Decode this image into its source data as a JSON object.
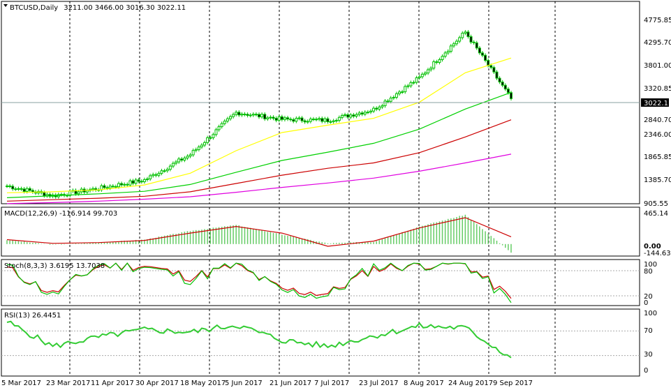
{
  "header": {
    "symbol": "BTCUSD,Daily",
    "ohlc": "3211.00 3466.00 3016.30 3022.11"
  },
  "price_panel": {
    "current_price": "3022.11",
    "y_axis_ticks": [
      "4775.85",
      "4295.70",
      "3801.00",
      "3320.85",
      "2840.70",
      "2346.00",
      "1865.85",
      "1385.70",
      "905.55"
    ]
  },
  "x_axis_labels": [
    "5 Mar 2017",
    "23 Mar 2017",
    "11 Apr 2017",
    "30 Apr 2017",
    "18 May 2017",
    "5 Jun 2017",
    "21 Jun 2017",
    "7 Jul 2017",
    "23 Jul 2017",
    "8 Aug 2017",
    "24 Aug 2017",
    "9 Sep 2017"
  ],
  "macd_panel": {
    "label": "MACD(12,26,9) -116.914 99.703",
    "y_axis_ticks": [
      "465.14",
      "0.00",
      "-144.631"
    ]
  },
  "stoch_panel": {
    "label": "Stoch(8,3,3) 3.6195 13.7038",
    "y_axis_ticks": [
      "100",
      "80",
      "20",
      "0"
    ]
  },
  "rsi_panel": {
    "label": "RSI(13) 26.4451",
    "y_axis_ticks": [
      "100",
      "70",
      "30",
      "0"
    ]
  },
  "colors": {
    "candle": "#00c000",
    "ma_yellow": "#ffff00",
    "ma_green": "#00d000",
    "ma_red": "#cc0000",
    "ma_magenta": "#e000e0",
    "macd_hist": "#66cc66",
    "macd_signal": "#cc0000",
    "stoch_main": "#00c000",
    "stoch_signal": "#cc0000",
    "rsi_line": "#33cc33",
    "grid": "#000000"
  },
  "chart_data": [
    {
      "type": "candlestick",
      "title": "BTCUSD,Daily",
      "ylim": [
        905.55,
        4950
      ],
      "x": [
        "5 Mar 2017",
        "23 Mar 2017",
        "11 Apr 2017",
        "30 Apr 2017",
        "18 May 2017",
        "5 Jun 2017",
        "21 Jun 2017",
        "7 Jul 2017",
        "23 Jul 2017",
        "8 Aug 2017",
        "24 Aug 2017",
        "9 Sep 2017"
      ],
      "close": [
        1240,
        1040,
        1190,
        1360,
        1880,
        2740,
        2600,
        2580,
        2800,
        3450,
        4380,
        3022.11
      ],
      "ma_yellow": [
        1100,
        1120,
        1160,
        1260,
        1500,
        1960,
        2330,
        2480,
        2620,
        2950,
        3550,
        3850
      ],
      "ma_green": [
        1000,
        1040,
        1080,
        1130,
        1270,
        1520,
        1760,
        1930,
        2110,
        2400,
        2810,
        3150
      ],
      "ma_red": [
        930,
        960,
        990,
        1030,
        1120,
        1290,
        1460,
        1600,
        1710,
        1920,
        2240,
        2590
      ],
      "ma_magenta": [
        880,
        900,
        930,
        970,
        1020,
        1110,
        1210,
        1300,
        1400,
        1540,
        1710,
        1890
      ]
    },
    {
      "type": "bar",
      "title": "MACD(12,26,9) -116.914 99.703",
      "ylim": [
        -144.631,
        465.14
      ],
      "x": [
        "5 Mar 2017",
        "23 Mar 2017",
        "11 Apr 2017",
        "30 Apr 2017",
        "18 May 2017",
        "5 Jun 2017",
        "21 Jun 2017",
        "7 Jul 2017",
        "23 Jul 2017",
        "8 Aug 2017",
        "24 Aug 2017",
        "9 Sep 2017"
      ],
      "histogram": [
        55,
        -10,
        20,
        60,
        180,
        260,
        130,
        10,
        30,
        240,
        400,
        -116.914
      ],
      "signal": [
        60,
        10,
        20,
        50,
        150,
        240,
        150,
        -30,
        40,
        220,
        360,
        99.703
      ]
    },
    {
      "type": "line",
      "title": "Stoch(8,3,3) 3.6195 13.7038",
      "ylim": [
        0,
        100
      ],
      "x": [
        "5 Mar 2017",
        "23 Mar 2017",
        "11 Apr 2017",
        "30 Apr 2017",
        "18 May 2017",
        "5 Jun 2017",
        "21 Jun 2017",
        "7 Jul 2017",
        "23 Jul 2017",
        "8 Aug 2017",
        "24 Aug 2017",
        "9 Sep 2017"
      ],
      "main": [
        90,
        20,
        95,
        90,
        60,
        95,
        30,
        20,
        90,
        95,
        98,
        3.6195
      ],
      "signal": [
        85,
        25,
        92,
        92,
        65,
        92,
        35,
        25,
        85,
        94,
        97,
        13.7038
      ]
    },
    {
      "type": "line",
      "title": "RSI(13) 26.4451",
      "ylim": [
        0,
        100
      ],
      "x": [
        "5 Mar 2017",
        "23 Mar 2017",
        "11 Apr 2017",
        "30 Apr 2017",
        "18 May 2017",
        "5 Jun 2017",
        "21 Jun 2017",
        "7 Jul 2017",
        "23 Jul 2017",
        "8 Aug 2017",
        "24 Aug 2017",
        "9 Sep 2017"
      ],
      "values": [
        85,
        45,
        60,
        72,
        68,
        80,
        55,
        45,
        62,
        78,
        75,
        26.4451
      ]
    }
  ]
}
